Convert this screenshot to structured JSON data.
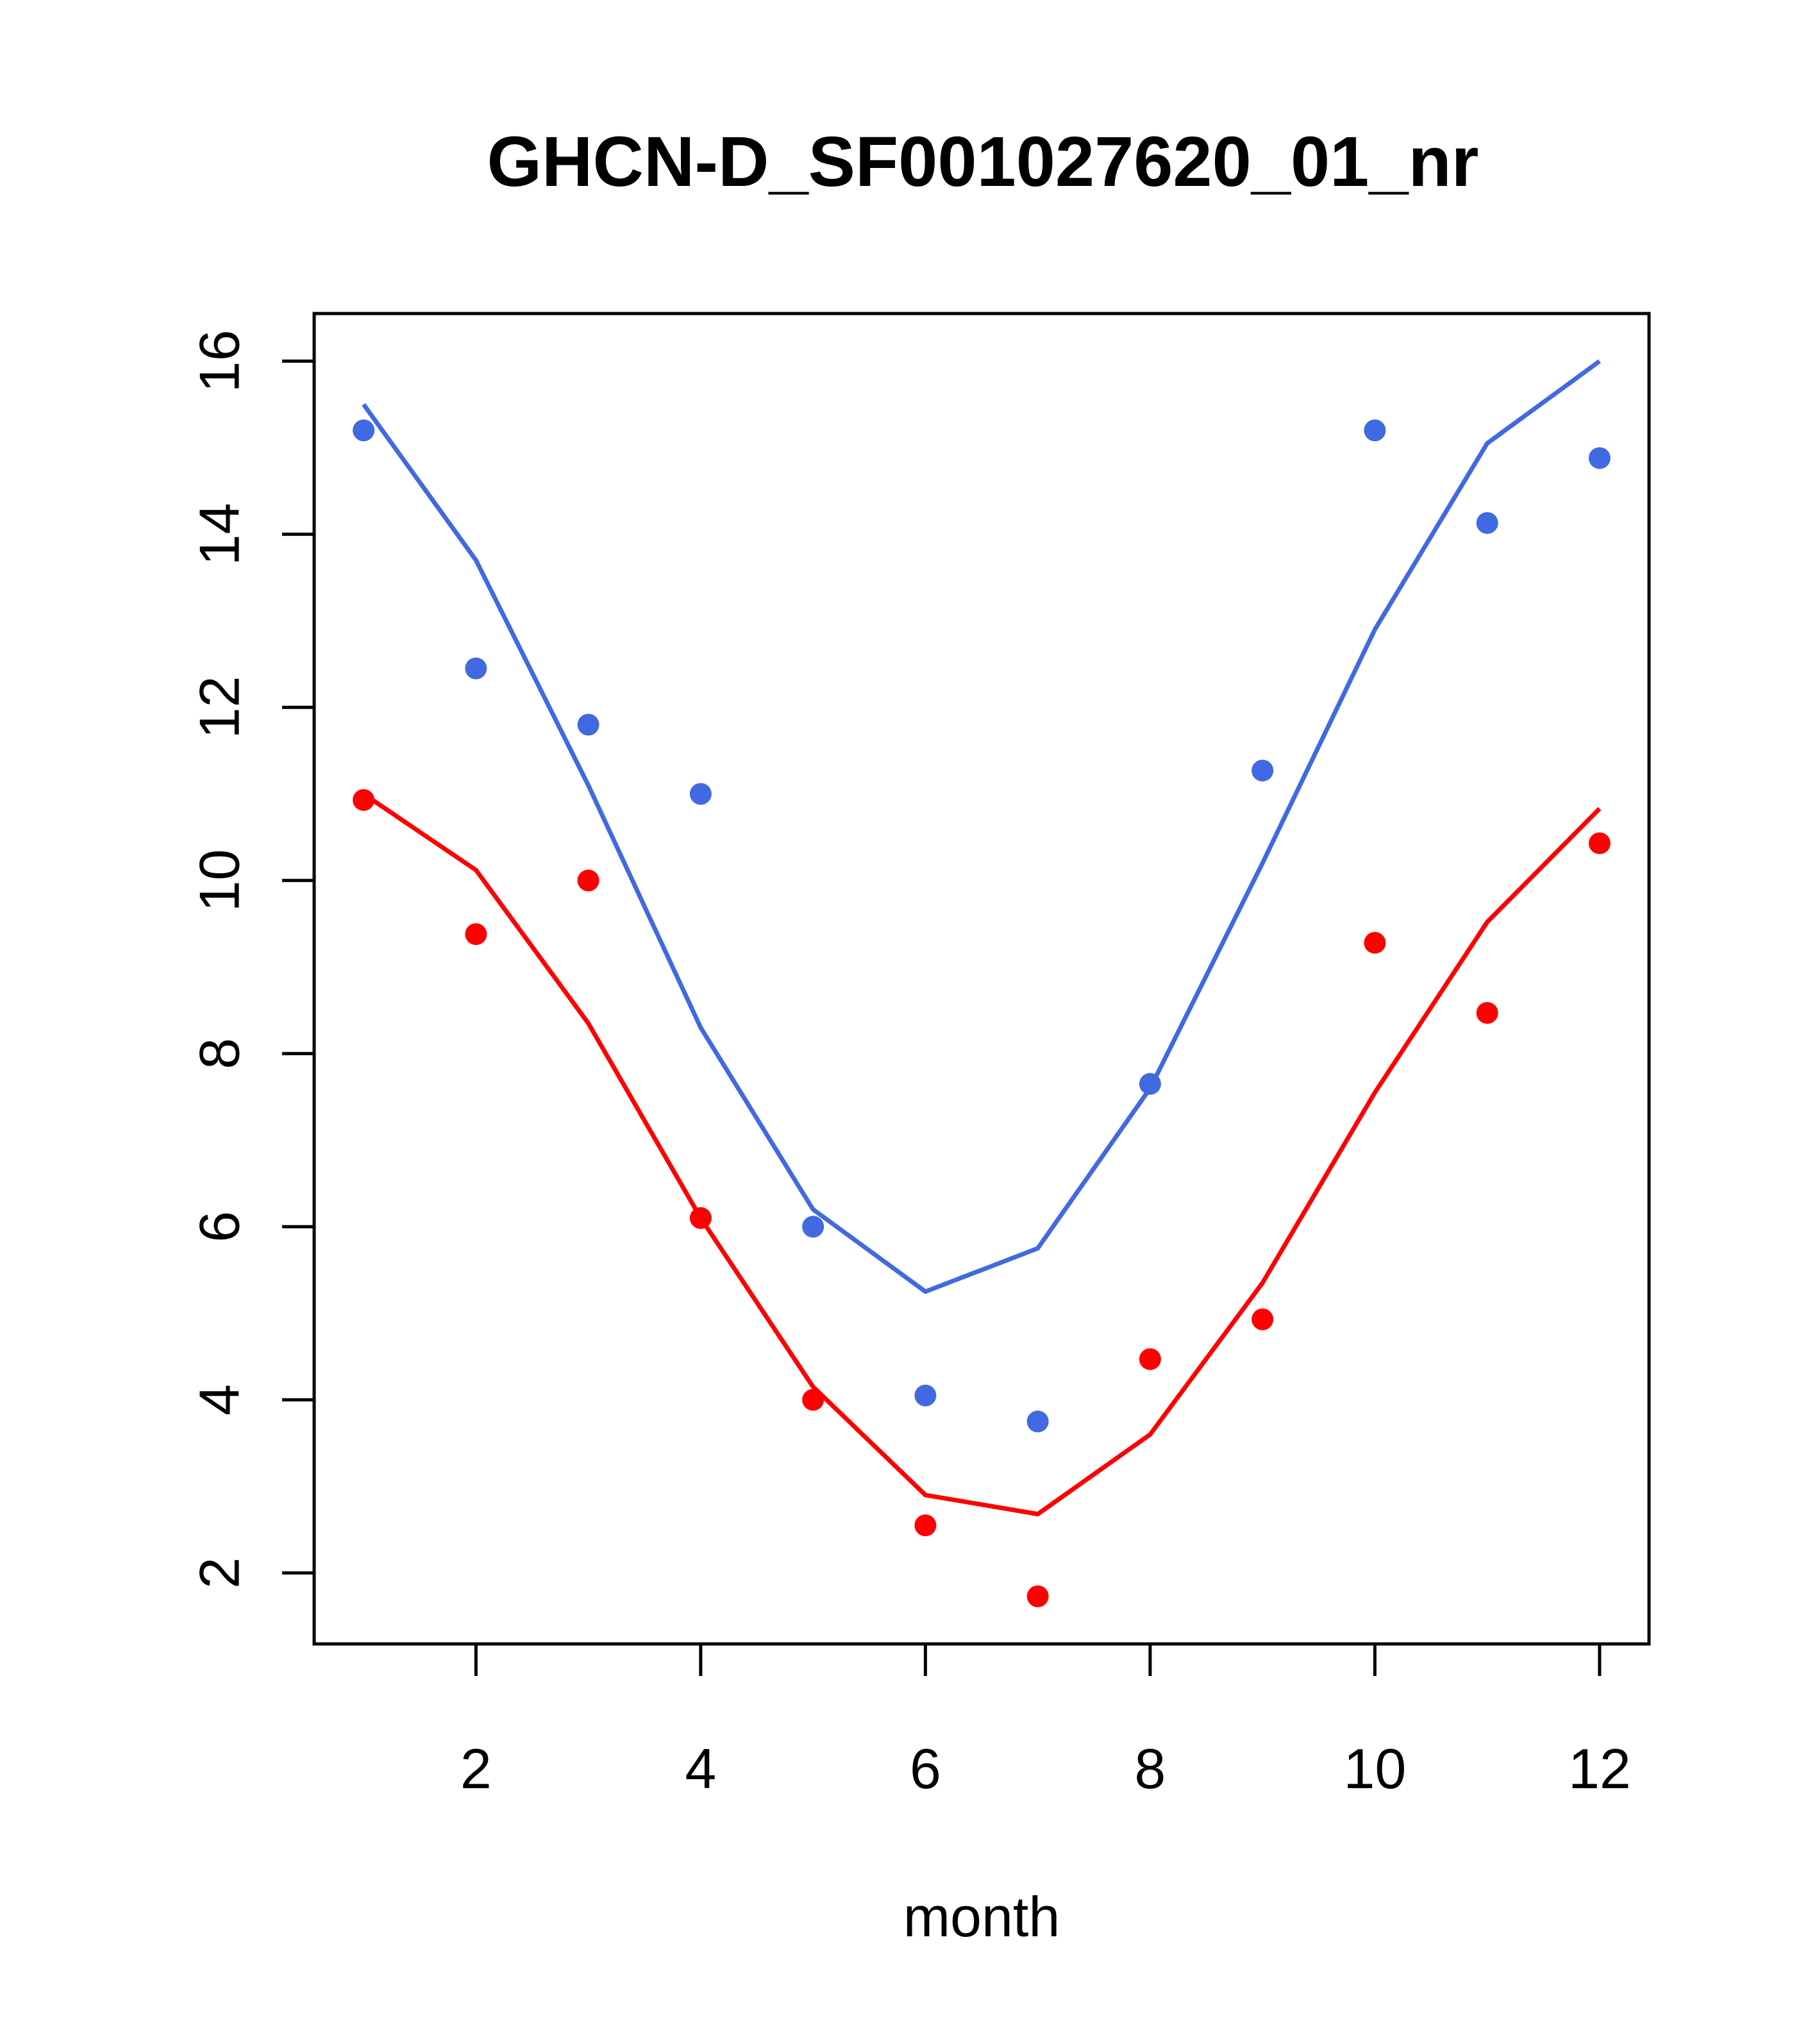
{
  "chart_data": {
    "type": "line",
    "title": "GHCN-D_SF001027620_01_nr",
    "xlabel": "month",
    "ylabel": "",
    "xlim": [
      0.56,
      12.44
    ],
    "ylim": [
      1.18,
      16.55
    ],
    "xticks": [
      2,
      4,
      6,
      8,
      10,
      12
    ],
    "yticks": [
      2,
      4,
      6,
      8,
      10,
      12,
      14,
      16
    ],
    "grid": false,
    "legend": "none",
    "x": [
      1,
      2,
      3,
      4,
      5,
      6,
      7,
      8,
      9,
      10,
      11,
      12
    ],
    "series": [
      {
        "color": "#4169E1",
        "line": [
          15.5,
          13.7,
          11.1,
          8.3,
          6.2,
          5.25,
          5.75,
          7.6,
          10.2,
          12.9,
          15.05,
          16.0
        ],
        "points": [
          15.2,
          12.45,
          11.8,
          11.0,
          6.0,
          4.05,
          3.75,
          7.65,
          11.27,
          15.2,
          14.13,
          14.88
        ]
      },
      {
        "color": "#FF0000",
        "line": [
          11.0,
          10.12,
          8.35,
          6.1,
          4.15,
          2.9,
          2.68,
          3.6,
          5.35,
          7.55,
          9.52,
          10.83
        ],
        "points": [
          10.93,
          9.38,
          10.0,
          6.1,
          4.0,
          2.55,
          1.73,
          4.47,
          4.93,
          9.28,
          8.47,
          10.43
        ]
      }
    ]
  }
}
